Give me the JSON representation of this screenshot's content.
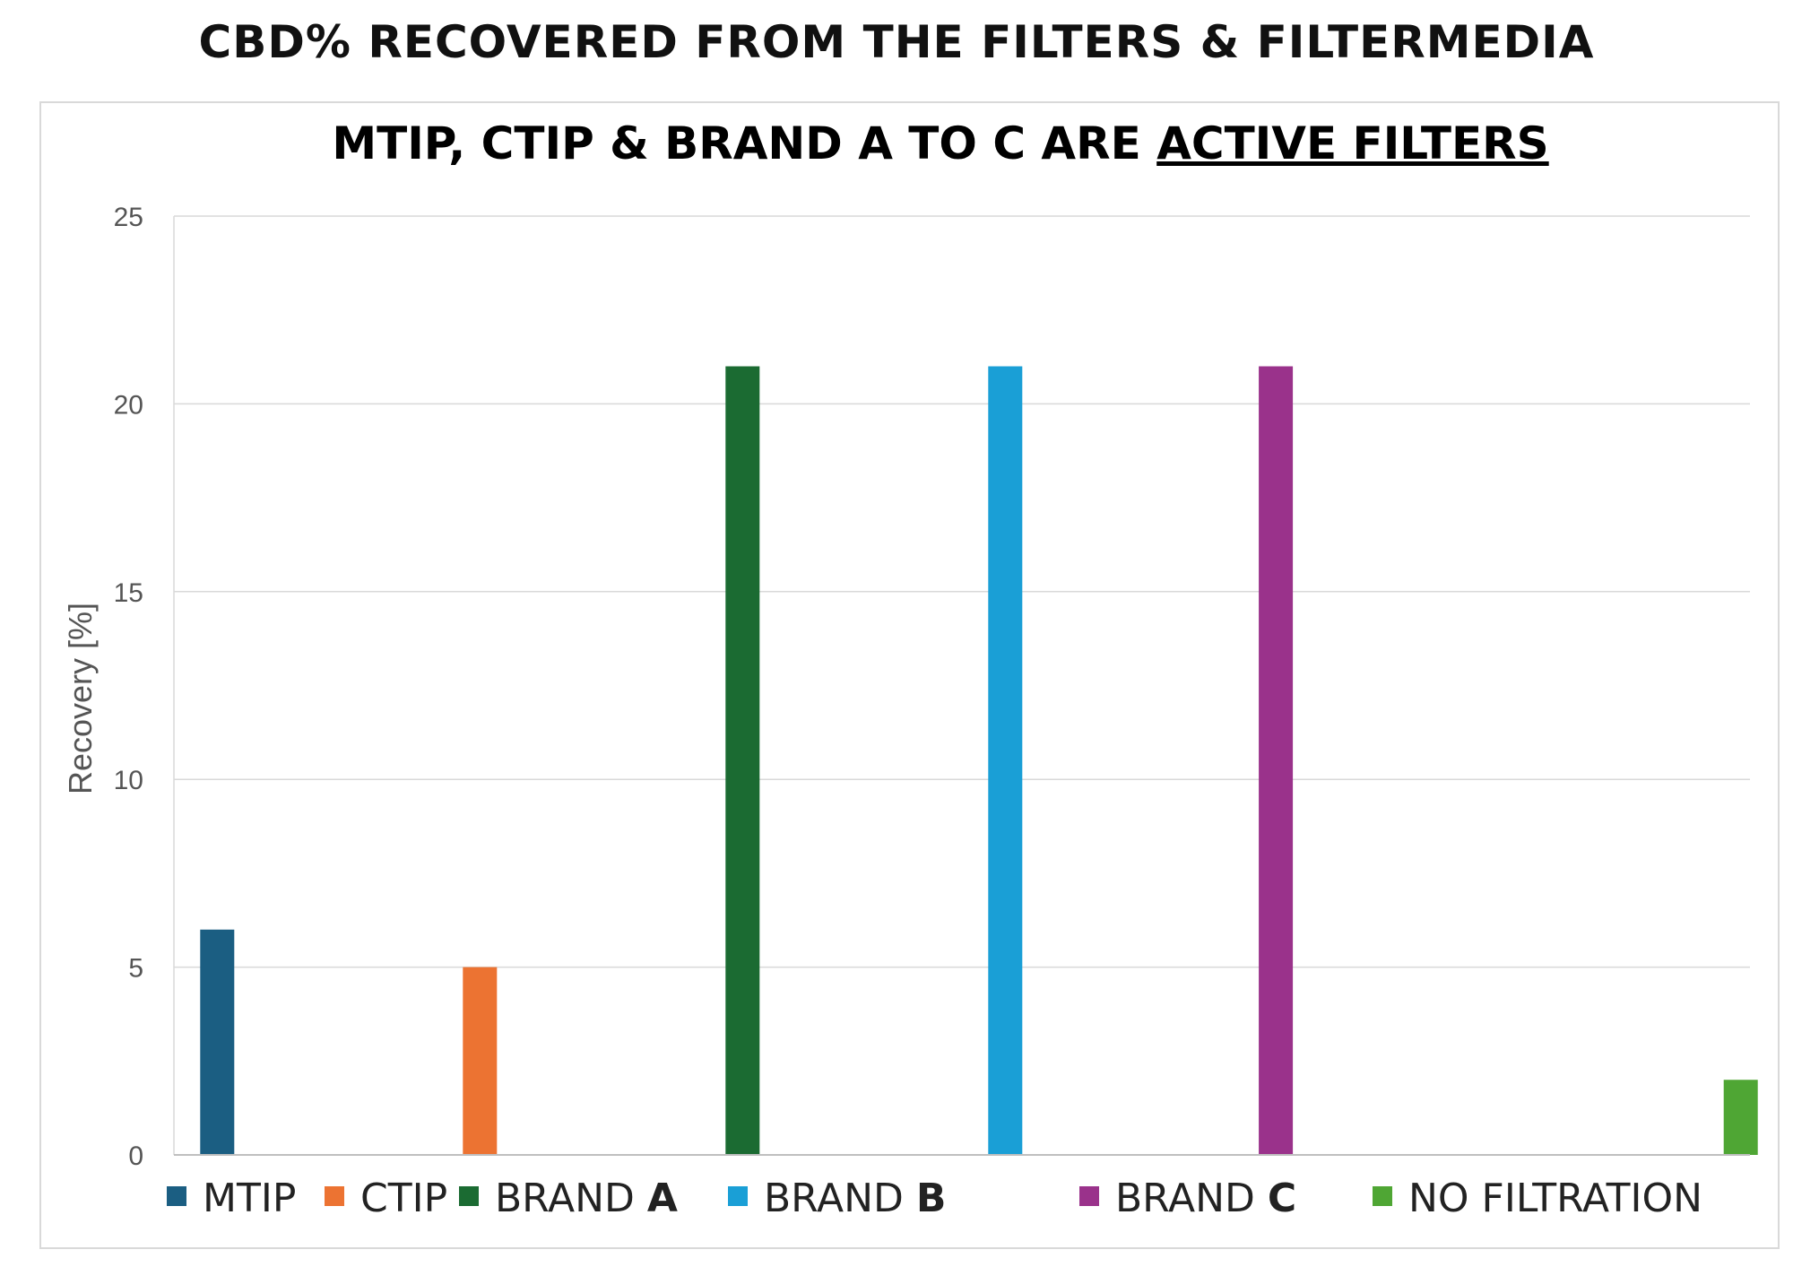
{
  "page_title": "CBD% RECOVERED FROM THE FILTERS & FILTERMEDIA",
  "chart_data": {
    "type": "bar",
    "title": "MTIP, CTIP & BRAND A TO C ARE ACTIVE FILTERS",
    "title_plain": "MTIP, CTIP & BRAND A TO C ARE ",
    "title_underlined": "ACTIVE FILTERS",
    "xlabel": "",
    "ylabel": "Recovery [%]",
    "ylim": [
      0,
      25
    ],
    "yticks": [
      "0",
      "5",
      "10",
      "15",
      "20",
      "25"
    ],
    "grid": true,
    "legend_position": "bottom",
    "series": [
      {
        "name": "MTIP",
        "legend_plain": "MTIP",
        "legend_bold": "",
        "value": 6,
        "color": "#1b5e82"
      },
      {
        "name": "CTIP",
        "legend_plain": "CTIP",
        "legend_bold": "",
        "value": 5,
        "color": "#ec7332"
      },
      {
        "name": "BRAND A",
        "legend_plain": "BRAND ",
        "legend_bold": "A",
        "value": 21,
        "color": "#1b6b32"
      },
      {
        "name": "BRAND B",
        "legend_plain": "BRAND ",
        "legend_bold": "B",
        "value": 21,
        "color": "#1a9fd6"
      },
      {
        "name": "BRAND C",
        "legend_plain": "BRAND ",
        "legend_bold": "C",
        "value": 21,
        "color": "#9a328b"
      },
      {
        "name": "NO FILTRATION",
        "legend_plain": "NO FILTRATION",
        "legend_bold": "",
        "value": 2,
        "color": "#4fa634"
      }
    ]
  }
}
